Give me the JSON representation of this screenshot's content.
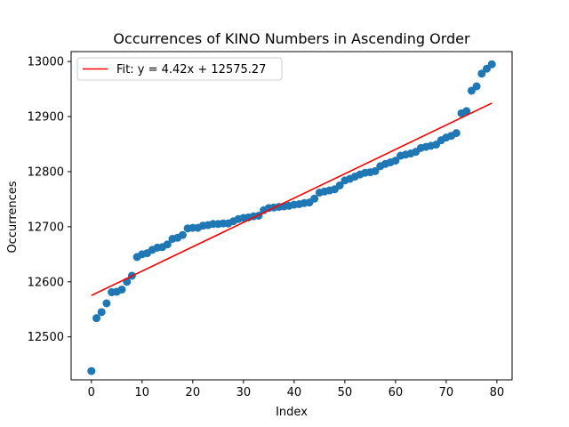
{
  "chart_data": {
    "type": "scatter",
    "title": "Occurrences of KINO Numbers in Ascending Order",
    "xlabel": "Index",
    "ylabel": "Occurrences",
    "xlim": [
      -4,
      83
    ],
    "ylim": [
      12422,
      13018
    ],
    "xticks": [
      0,
      10,
      20,
      30,
      40,
      50,
      60,
      70,
      80
    ],
    "yticks": [
      12500,
      12600,
      12700,
      12800,
      12900,
      13000
    ],
    "grid": false,
    "legend_position": "top-left",
    "series": [
      {
        "kind": "scatter",
        "color": "#1f77b4",
        "x": [
          0,
          1,
          2,
          3,
          4,
          5,
          6,
          7,
          8,
          9,
          10,
          11,
          12,
          13,
          14,
          15,
          16,
          17,
          18,
          19,
          20,
          21,
          22,
          23,
          24,
          25,
          26,
          27,
          28,
          29,
          30,
          31,
          32,
          33,
          34,
          35,
          36,
          37,
          38,
          39,
          40,
          41,
          42,
          43,
          44,
          45,
          46,
          47,
          48,
          49,
          50,
          51,
          52,
          53,
          54,
          55,
          56,
          57,
          58,
          59,
          60,
          61,
          62,
          63,
          64,
          65,
          66,
          67,
          68,
          69,
          70,
          71,
          72,
          73,
          74,
          75,
          76,
          77,
          78,
          79
        ],
        "y": [
          12438,
          12534,
          12545,
          12561,
          12581,
          12582,
          12586,
          12600,
          12611,
          12645,
          12650,
          12652,
          12658,
          12662,
          12663,
          12668,
          12678,
          12680,
          12685,
          12697,
          12698,
          12698,
          12702,
          12703,
          12705,
          12705,
          12706,
          12706,
          12710,
          12714,
          12716,
          12717,
          12719,
          12720,
          12730,
          12734,
          12735,
          12736,
          12737,
          12738,
          12740,
          12741,
          12743,
          12744,
          12751,
          12762,
          12764,
          12766,
          12768,
          12775,
          12784,
          12787,
          12791,
          12795,
          12798,
          12799,
          12801,
          12810,
          12814,
          12817,
          12820,
          12829,
          12831,
          12833,
          12836,
          12843,
          12845,
          12847,
          12849,
          12857,
          12862,
          12865,
          12870,
          12906,
          12910,
          12947,
          12955,
          12978,
          12987,
          12995
        ]
      },
      {
        "kind": "line",
        "name": "Fit: y = 4.42x + 12575.27",
        "color": "#ff0000",
        "x": [
          0,
          79
        ],
        "y": [
          12575.27,
          12924.45
        ]
      }
    ]
  }
}
